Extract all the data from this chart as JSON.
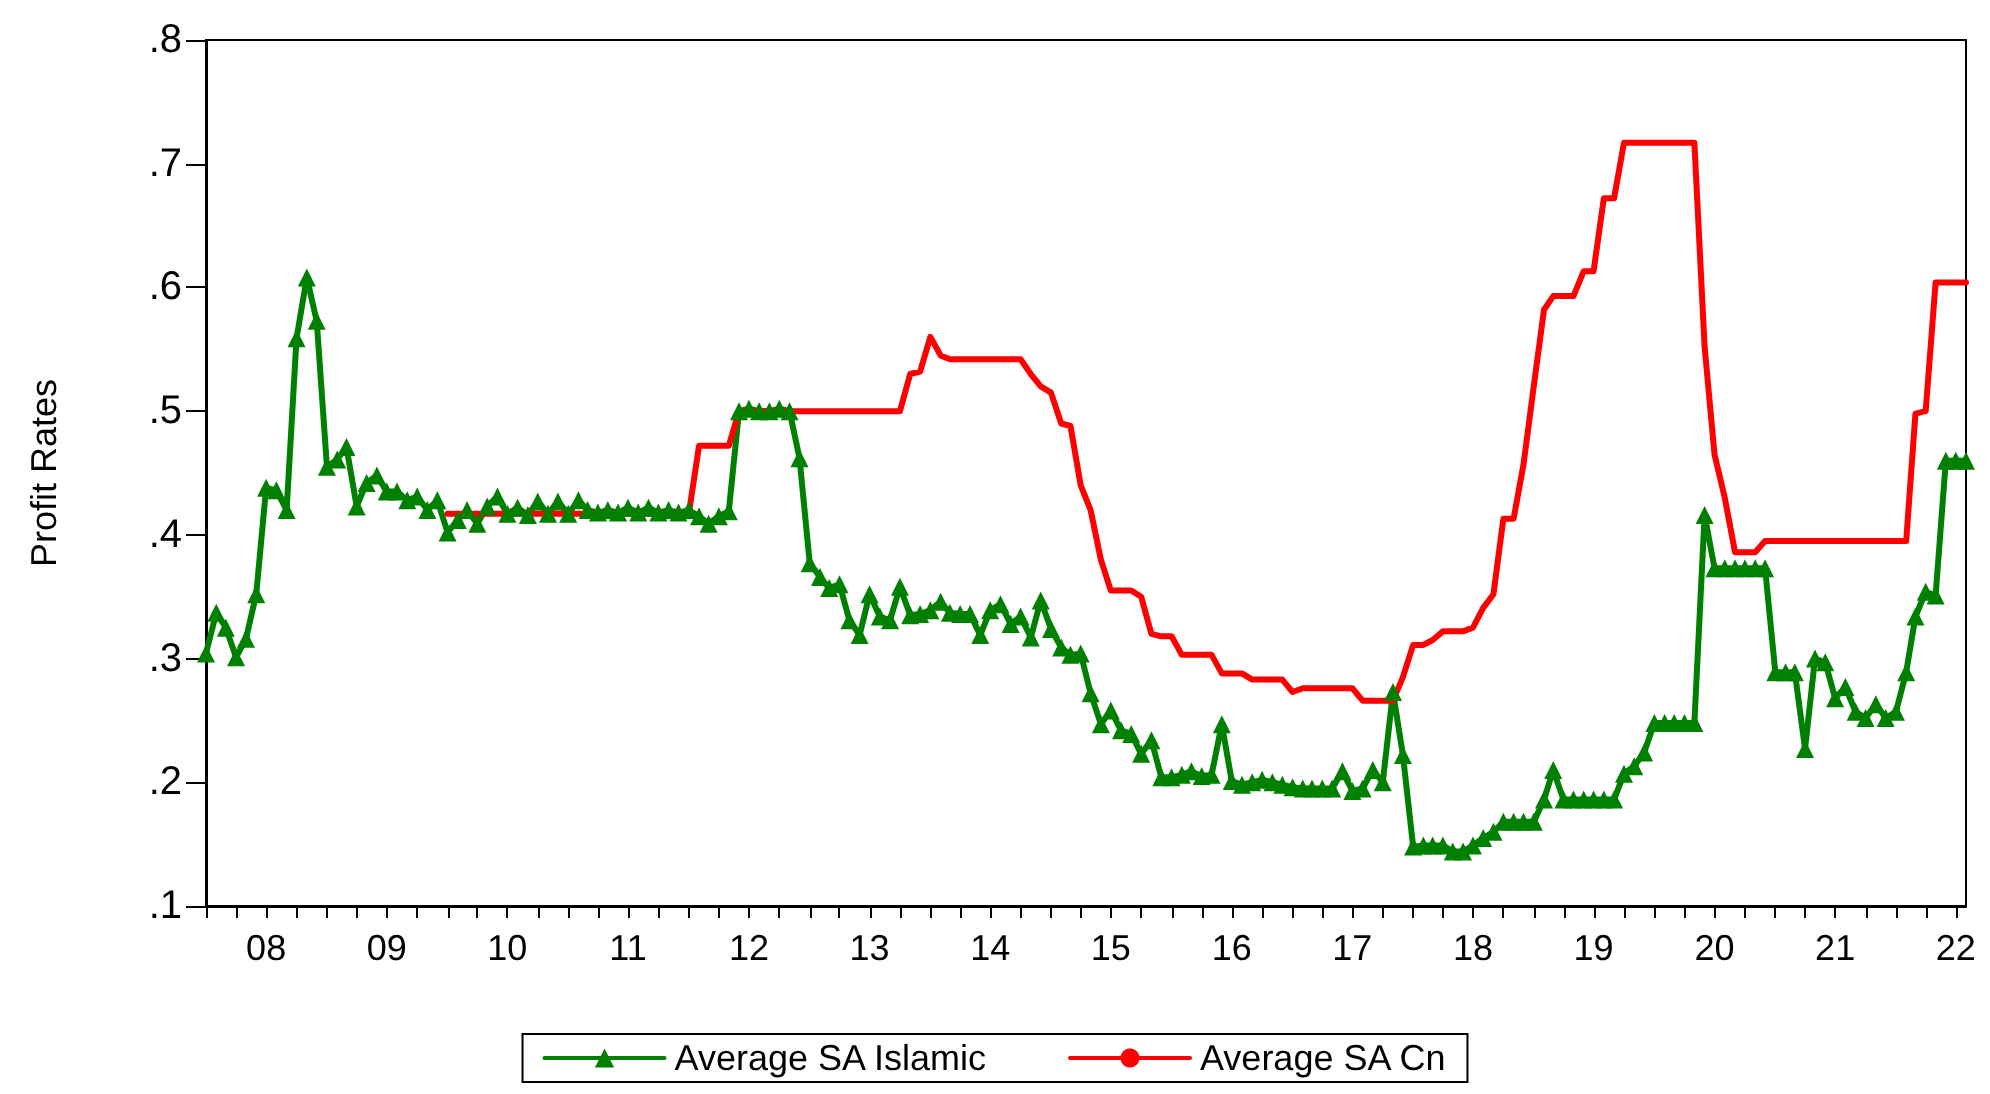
{
  "chart_data": {
    "type": "line",
    "ylabel": "Profit Rates",
    "x": [
      "2008-01",
      "2008-02",
      "2008-03",
      "2008-04",
      "2008-05",
      "2008-06",
      "2008-07",
      "2008-08",
      "2008-09",
      "2008-10",
      "2008-11",
      "2008-12",
      "2009-01",
      "2009-02",
      "2009-03",
      "2009-04",
      "2009-05",
      "2009-06",
      "2009-07",
      "2009-08",
      "2009-09",
      "2009-10",
      "2009-11",
      "2009-12",
      "2010-01",
      "2010-02",
      "2010-03",
      "2010-04",
      "2010-05",
      "2010-06",
      "2010-07",
      "2010-08",
      "2010-09",
      "2010-10",
      "2010-11",
      "2010-12",
      "2011-01",
      "2011-02",
      "2011-03",
      "2011-04",
      "2011-05",
      "2011-06",
      "2011-07",
      "2011-08",
      "2011-09",
      "2011-10",
      "2011-11",
      "2011-12",
      "2012-01",
      "2012-02",
      "2012-03",
      "2012-04",
      "2012-05",
      "2012-06",
      "2012-07",
      "2012-08",
      "2012-09",
      "2012-10",
      "2012-11",
      "2012-12",
      "2013-01",
      "2013-02",
      "2013-03",
      "2013-04",
      "2013-05",
      "2013-06",
      "2013-07",
      "2013-08",
      "2013-09",
      "2013-10",
      "2013-11",
      "2013-12",
      "2014-01",
      "2014-02",
      "2014-03",
      "2014-04",
      "2014-05",
      "2014-06",
      "2014-07",
      "2014-08",
      "2014-09",
      "2014-10",
      "2014-11",
      "2014-12",
      "2015-01",
      "2015-02",
      "2015-03",
      "2015-04",
      "2015-05",
      "2015-06",
      "2015-07",
      "2015-08",
      "2015-09",
      "2015-10",
      "2015-11",
      "2015-12",
      "2016-01",
      "2016-02",
      "2016-03",
      "2016-04",
      "2016-05",
      "2016-06",
      "2016-07",
      "2016-08",
      "2016-09",
      "2016-10",
      "2016-11",
      "2016-12",
      "2017-01",
      "2017-02",
      "2017-03",
      "2017-04",
      "2017-05",
      "2017-06",
      "2017-07",
      "2017-08",
      "2017-09",
      "2017-10",
      "2017-11",
      "2017-12",
      "2018-01",
      "2018-02",
      "2018-03",
      "2018-04",
      "2018-05",
      "2018-06",
      "2018-07",
      "2018-08",
      "2018-09",
      "2018-10",
      "2018-11",
      "2018-12",
      "2019-01",
      "2019-02",
      "2019-03",
      "2019-04",
      "2019-05",
      "2019-06",
      "2019-07",
      "2019-08",
      "2019-09",
      "2019-10",
      "2019-11",
      "2019-12",
      "2020-01",
      "2020-02",
      "2020-03",
      "2020-04",
      "2020-05",
      "2020-06",
      "2020-07",
      "2020-08",
      "2020-09",
      "2020-10",
      "2020-11",
      "2020-12",
      "2021-01",
      "2021-02",
      "2021-03",
      "2021-04",
      "2021-05",
      "2021-06",
      "2021-07",
      "2021-08",
      "2021-09",
      "2021-10",
      "2021-11",
      "2021-12",
      "2022-01",
      "2022-02",
      "2022-03",
      "2022-04",
      "2022-05",
      "2022-06",
      "2022-07",
      "2022-08"
    ],
    "series": [
      {
        "name": "Average SA Islamic",
        "color": "#008000",
        "marker": "triangle",
        "values": [
          0.304,
          0.337,
          0.325,
          0.301,
          0.316,
          0.352,
          0.438,
          0.436,
          0.42,
          0.559,
          0.608,
          0.573,
          0.455,
          0.461,
          0.471,
          0.423,
          0.442,
          0.448,
          0.435,
          0.435,
          0.428,
          0.431,
          0.42,
          0.428,
          0.402,
          0.412,
          0.42,
          0.409,
          0.423,
          0.431,
          0.417,
          0.422,
          0.416,
          0.427,
          0.417,
          0.427,
          0.417,
          0.428,
          0.42,
          0.418,
          0.42,
          0.418,
          0.422,
          0.418,
          0.422,
          0.418,
          0.42,
          0.418,
          0.42,
          0.415,
          0.409,
          0.415,
          0.419,
          0.5,
          0.502,
          0.5,
          0.5,
          0.502,
          0.5,
          0.462,
          0.377,
          0.366,
          0.357,
          0.36,
          0.331,
          0.319,
          0.352,
          0.334,
          0.331,
          0.358,
          0.335,
          0.336,
          0.339,
          0.346,
          0.337,
          0.336,
          0.336,
          0.319,
          0.339,
          0.344,
          0.328,
          0.334,
          0.317,
          0.347,
          0.324,
          0.309,
          0.303,
          0.304,
          0.272,
          0.247,
          0.258,
          0.242,
          0.239,
          0.223,
          0.234,
          0.204,
          0.204,
          0.206,
          0.209,
          0.205,
          0.206,
          0.247,
          0.201,
          0.198,
          0.2,
          0.202,
          0.2,
          0.198,
          0.196,
          0.195,
          0.195,
          0.195,
          0.195,
          0.209,
          0.193,
          0.195,
          0.21,
          0.2,
          0.273,
          0.222,
          0.148,
          0.149,
          0.149,
          0.149,
          0.144,
          0.144,
          0.149,
          0.155,
          0.16,
          0.168,
          0.168,
          0.168,
          0.168,
          0.186,
          0.21,
          0.186,
          0.186,
          0.186,
          0.186,
          0.186,
          0.186,
          0.207,
          0.213,
          0.224,
          0.248,
          0.248,
          0.248,
          0.248,
          0.248,
          0.416,
          0.373,
          0.373,
          0.373,
          0.373,
          0.373,
          0.373,
          0.289,
          0.289,
          0.289,
          0.227,
          0.3,
          0.297,
          0.268,
          0.277,
          0.257,
          0.252,
          0.263,
          0.252,
          0.257,
          0.289,
          0.334,
          0.354,
          0.351,
          0.46,
          0.46,
          0.46
        ]
      },
      {
        "name": "Average SA Cn",
        "color": "#ff0000",
        "marker": "none",
        "values": [
          null,
          null,
          null,
          null,
          null,
          null,
          null,
          null,
          null,
          null,
          null,
          null,
          null,
          null,
          null,
          null,
          null,
          null,
          null,
          null,
          null,
          null,
          null,
          null,
          0.417,
          0.417,
          0.417,
          0.417,
          0.417,
          0.417,
          0.417,
          0.417,
          0.417,
          0.417,
          0.417,
          0.417,
          0.417,
          0.417,
          0.417,
          0.417,
          0.417,
          0.417,
          0.417,
          0.417,
          0.417,
          0.417,
          0.417,
          0.417,
          0.417,
          0.472,
          0.472,
          0.472,
          0.472,
          0.5,
          0.5,
          0.5,
          0.5,
          0.5,
          0.5,
          0.5,
          0.5,
          0.5,
          0.5,
          0.5,
          0.5,
          0.5,
          0.5,
          0.5,
          0.5,
          0.5,
          0.53,
          0.532,
          0.56,
          0.545,
          0.542,
          0.542,
          0.542,
          0.542,
          0.542,
          0.542,
          0.542,
          0.542,
          0.53,
          0.52,
          0.515,
          0.49,
          0.488,
          0.44,
          0.42,
          0.38,
          0.355,
          0.355,
          0.355,
          0.35,
          0.32,
          0.318,
          0.318,
          0.303,
          0.303,
          0.303,
          0.303,
          0.288,
          0.288,
          0.288,
          0.283,
          0.283,
          0.283,
          0.283,
          0.273,
          0.276,
          0.276,
          0.276,
          0.276,
          0.276,
          0.276,
          0.266,
          0.266,
          0.266,
          0.266,
          0.285,
          0.311,
          0.311,
          0.315,
          0.322,
          0.322,
          0.322,
          0.325,
          0.341,
          0.352,
          0.413,
          0.413,
          0.457,
          0.52,
          0.582,
          0.593,
          0.593,
          0.593,
          0.613,
          0.613,
          0.672,
          0.672,
          0.717,
          0.717,
          0.717,
          0.717,
          0.717,
          0.717,
          0.717,
          0.717,
          0.552,
          0.465,
          0.43,
          0.386,
          0.386,
          0.386,
          0.395,
          0.395,
          0.395,
          0.395,
          0.395,
          0.395,
          0.395,
          0.395,
          0.395,
          0.395,
          0.395,
          0.395,
          0.395,
          0.395,
          0.395,
          0.498,
          0.5,
          0.604,
          0.604,
          0.604,
          0.604
        ]
      }
    ],
    "xlim": [
      "2008-01",
      "2022-08"
    ],
    "xticks": [
      {
        "value": "2008-01",
        "label": null
      },
      {
        "value": "2008-04",
        "label": null
      },
      {
        "value": "2008-07",
        "label": "08"
      },
      {
        "value": "2008-10",
        "label": null
      },
      {
        "value": "2009-01",
        "label": null
      },
      {
        "value": "2009-04",
        "label": null
      },
      {
        "value": "2009-07",
        "label": "09"
      },
      {
        "value": "2009-10",
        "label": null
      },
      {
        "value": "2010-01",
        "label": null
      },
      {
        "value": "2010-04",
        "label": null
      },
      {
        "value": "2010-07",
        "label": "10"
      },
      {
        "value": "2010-10",
        "label": null
      },
      {
        "value": "2011-01",
        "label": null
      },
      {
        "value": "2011-04",
        "label": null
      },
      {
        "value": "2011-07",
        "label": "11"
      },
      {
        "value": "2011-10",
        "label": null
      },
      {
        "value": "2012-01",
        "label": null
      },
      {
        "value": "2012-04",
        "label": null
      },
      {
        "value": "2012-07",
        "label": "12"
      },
      {
        "value": "2012-10",
        "label": null
      },
      {
        "value": "2013-01",
        "label": null
      },
      {
        "value": "2013-04",
        "label": null
      },
      {
        "value": "2013-07",
        "label": "13"
      },
      {
        "value": "2013-10",
        "label": null
      },
      {
        "value": "2014-01",
        "label": null
      },
      {
        "value": "2014-04",
        "label": null
      },
      {
        "value": "2014-07",
        "label": "14"
      },
      {
        "value": "2014-10",
        "label": null
      },
      {
        "value": "2015-01",
        "label": null
      },
      {
        "value": "2015-04",
        "label": null
      },
      {
        "value": "2015-07",
        "label": "15"
      },
      {
        "value": "2015-10",
        "label": null
      },
      {
        "value": "2016-01",
        "label": null
      },
      {
        "value": "2016-04",
        "label": null
      },
      {
        "value": "2016-07",
        "label": "16"
      },
      {
        "value": "2016-10",
        "label": null
      },
      {
        "value": "2017-01",
        "label": null
      },
      {
        "value": "2017-04",
        "label": null
      },
      {
        "value": "2017-07",
        "label": "17"
      },
      {
        "value": "2017-10",
        "label": null
      },
      {
        "value": "2018-01",
        "label": null
      },
      {
        "value": "2018-04",
        "label": null
      },
      {
        "value": "2018-07",
        "label": "18"
      },
      {
        "value": "2018-10",
        "label": null
      },
      {
        "value": "2019-01",
        "label": null
      },
      {
        "value": "2019-04",
        "label": null
      },
      {
        "value": "2019-07",
        "label": "19"
      },
      {
        "value": "2019-10",
        "label": null
      },
      {
        "value": "2020-01",
        "label": null
      },
      {
        "value": "2020-04",
        "label": null
      },
      {
        "value": "2020-07",
        "label": "20"
      },
      {
        "value": "2020-10",
        "label": null
      },
      {
        "value": "2021-01",
        "label": null
      },
      {
        "value": "2021-04",
        "label": null
      },
      {
        "value": "2021-07",
        "label": "21"
      },
      {
        "value": "2021-10",
        "label": null
      },
      {
        "value": "2022-01",
        "label": null
      },
      {
        "value": "2022-04",
        "label": null
      },
      {
        "value": "2022-07",
        "label": "22"
      }
    ],
    "ylim": [
      0.1,
      0.8
    ],
    "yticks": [
      {
        "value": 0.1,
        "label": ".1"
      },
      {
        "value": 0.2,
        "label": ".2"
      },
      {
        "value": 0.3,
        "label": ".3"
      },
      {
        "value": 0.4,
        "label": ".4"
      },
      {
        "value": 0.5,
        "label": ".5"
      },
      {
        "value": 0.6,
        "label": ".6"
      },
      {
        "value": 0.7,
        "label": ".7"
      },
      {
        "value": 0.8,
        "label": ".8"
      }
    ],
    "legend": "bottom"
  }
}
